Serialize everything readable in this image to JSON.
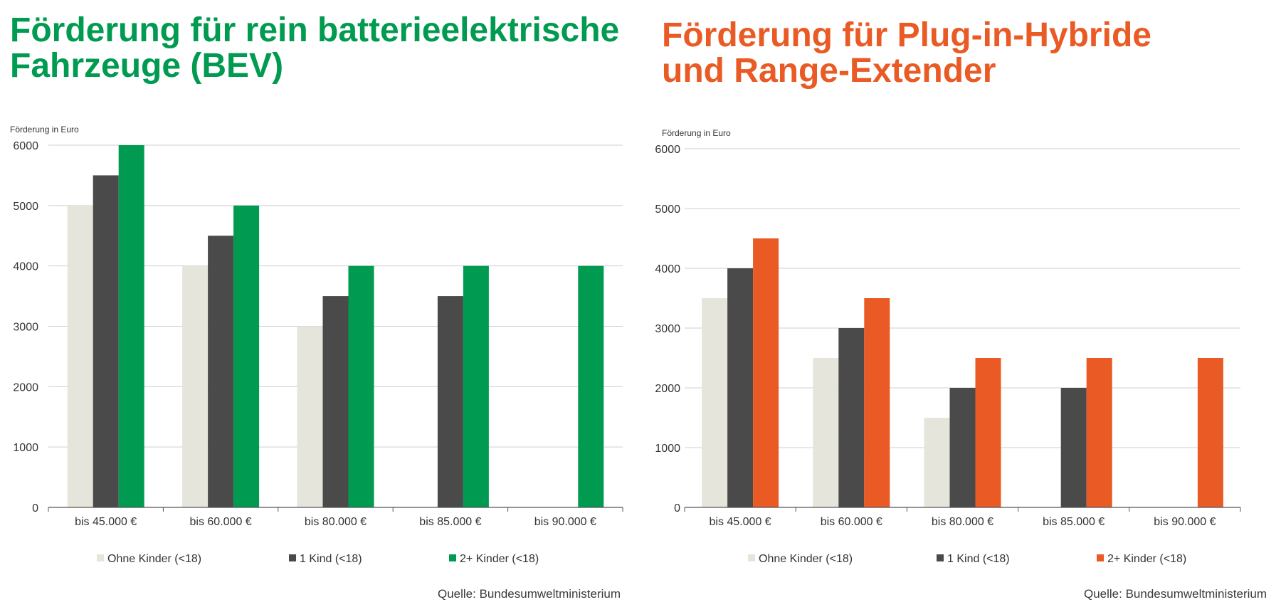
{
  "charts": [
    {
      "title": "Förderung für rein batterieelektrische\nFahrzeuge (BEV)",
      "title_color": "#009b50",
      "source": "Quelle: Bundesumweltministerium",
      "chart_data": {
        "type": "bar",
        "ylabel": "Förderung in Euro",
        "ylim": [
          0,
          6000
        ],
        "yticks": [
          0,
          1000,
          2000,
          3000,
          4000,
          5000,
          6000
        ],
        "categories": [
          "bis 45.000 €",
          "bis 60.000 €",
          "bis 80.000 €",
          "bis 85.000 €",
          "bis 90.000 €"
        ],
        "series": [
          {
            "name": "Ohne Kinder (<18)",
            "color": "#e6e5dc",
            "values": [
              5000,
              4000,
              3000,
              null,
              null
            ]
          },
          {
            "name": "1 Kind (<18)",
            "color": "#4a4a4a",
            "values": [
              5500,
              4500,
              3500,
              3500,
              null
            ]
          },
          {
            "name": "2+ Kinder (<18)",
            "color": "#009b50",
            "values": [
              6000,
              5000,
              4000,
              4000,
              4000
            ]
          }
        ],
        "legend": "bottom",
        "grid": true
      }
    },
    {
      "title": "Förderung für Plug-in-Hybride\nund Range-Extender",
      "title_color": "#e95a24",
      "source": "Quelle: Bundesumweltministerium",
      "chart_data": {
        "type": "bar",
        "ylabel": "Förderung in Euro",
        "ylim": [
          0,
          6000
        ],
        "yticks": [
          0,
          1000,
          2000,
          3000,
          4000,
          5000,
          6000
        ],
        "categories": [
          "bis 45.000 €",
          "bis 60.000 €",
          "bis 80.000 €",
          "bis 85.000 €",
          "bis 90.000 €"
        ],
        "series": [
          {
            "name": "Ohne Kinder (<18)",
            "color": "#e6e5dc",
            "values": [
              3500,
              2500,
              1500,
              null,
              null
            ]
          },
          {
            "name": "1 Kind (<18)",
            "color": "#4a4a4a",
            "values": [
              4000,
              3000,
              2000,
              2000,
              null
            ]
          },
          {
            "name": "2+ Kinder (<18)",
            "color": "#e95a24",
            "values": [
              4500,
              3500,
              2500,
              2500,
              2500
            ]
          }
        ],
        "legend": "bottom",
        "grid": true
      }
    }
  ]
}
